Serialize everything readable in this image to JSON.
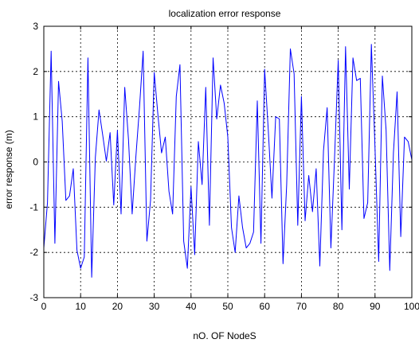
{
  "chart_data": {
    "type": "line",
    "title": "localization error response",
    "xlabel": "nO. OF NodeS",
    "ylabel": "error response (m)",
    "xlim": [
      0,
      100
    ],
    "ylim": [
      -3,
      3
    ],
    "xticks": [
      0,
      10,
      20,
      30,
      40,
      50,
      60,
      70,
      80,
      90,
      100
    ],
    "yticks": [
      -3,
      -2,
      -1,
      0,
      1,
      2,
      3
    ],
    "grid": true,
    "line_color": "#0000ff",
    "series": [
      {
        "x": [
          0,
          1,
          2,
          3,
          4,
          5,
          6,
          7,
          8,
          9,
          10,
          11,
          12,
          13,
          14,
          15,
          16,
          17,
          18,
          19,
          20,
          21,
          22,
          23,
          24,
          25,
          26,
          27,
          28,
          29,
          30,
          31,
          32,
          33,
          34,
          35,
          36,
          37,
          38,
          39,
          40,
          41,
          42,
          43,
          44,
          45,
          46,
          47,
          48,
          49,
          50,
          51,
          52,
          53,
          54,
          55,
          56,
          57,
          58,
          59,
          60,
          61,
          62,
          63,
          64,
          65,
          66,
          67,
          68,
          69,
          70,
          71,
          72,
          73,
          74,
          75,
          76,
          77,
          78,
          79,
          80,
          81,
          82,
          83,
          84,
          85,
          86,
          87,
          88,
          89,
          90,
          91,
          92,
          93,
          94,
          95,
          96,
          97,
          98,
          99,
          100
        ],
        "y": [
          -1.9,
          -0.9,
          2.45,
          -1.8,
          1.78,
          0.9,
          -0.85,
          -0.75,
          -0.15,
          -1.95,
          -2.35,
          -2.1,
          2.3,
          -2.55,
          0.1,
          1.15,
          0.6,
          0.02,
          0.65,
          -0.95,
          0.7,
          -1.15,
          1.65,
          0.5,
          -1.15,
          0.1,
          1.2,
          2.45,
          -1.75,
          -0.85,
          1.98,
          1.05,
          0.2,
          0.55,
          -0.65,
          -1.15,
          1.45,
          2.15,
          -1.75,
          -2.35,
          -0.55,
          -2.05,
          0.45,
          -0.5,
          1.65,
          -1.4,
          2.3,
          0.95,
          1.7,
          1.3,
          0.55,
          -1.45,
          -2.0,
          -0.75,
          -1.45,
          -1.9,
          -1.8,
          -1.55,
          1.35,
          -1.8,
          2.05,
          0.7,
          -0.8,
          1.0,
          0.95,
          -2.25,
          -0.5,
          2.5,
          1.95,
          -1.4,
          1.45,
          -1.3,
          -0.3,
          -1.1,
          -0.15,
          -2.3,
          0.25,
          1.2,
          -1.9,
          0.1,
          2.25,
          -1.5,
          2.55,
          -0.6,
          2.3,
          1.8,
          1.85,
          -1.25,
          -0.9,
          2.6,
          0.3,
          -2.2,
          1.9,
          0.7,
          -2.4,
          0.2,
          1.55,
          -1.65,
          0.55,
          0.45,
          0.05
        ]
      }
    ]
  }
}
